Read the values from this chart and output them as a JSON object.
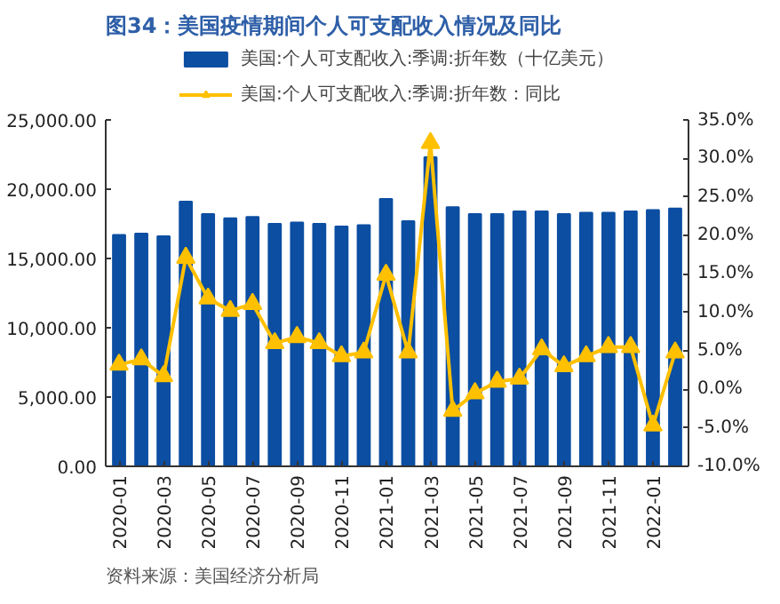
{
  "chart_data": {
    "type": "bar",
    "title": "图34：美国疫情期间个人可支配收入情况及同比",
    "categories": [
      "2020-01",
      null,
      "2020-03",
      null,
      "2020-05",
      null,
      "2020-07",
      null,
      "2020-09",
      null,
      "2020-11",
      null,
      "2021-01",
      null,
      "2021-03",
      null,
      "2021-05",
      null,
      "2021-07",
      null,
      "2021-09",
      null,
      "2021-11",
      null,
      "2022-01",
      null
    ],
    "series": [
      {
        "name": "美国:个人可支配收入:季调:折年数（十亿美元）",
        "color": "#0b4ea2",
        "values": [
          16700,
          16800,
          16600,
          19100,
          18200,
          17900,
          18000,
          17500,
          17600,
          17500,
          17300,
          17400,
          19300,
          17700,
          22300,
          18700,
          18200,
          18200,
          18400,
          18400,
          18200,
          18300,
          18300,
          18400,
          18500,
          18600
        ]
      },
      {
        "name": "美国:个人可支配收入:季调:折年数：同比",
        "type": "line",
        "axis": "y2",
        "color": "#ffc000",
        "marker": "triangle",
        "values": [
          3.2,
          3.9,
          1.7,
          17.1,
          11.8,
          10.2,
          11.1,
          6.0,
          6.8,
          6.0,
          4.3,
          4.8,
          14.9,
          4.8,
          32.0,
          -2.8,
          -0.5,
          1.0,
          1.4,
          5.2,
          3.0,
          4.3,
          5.5,
          5.5,
          -4.7,
          4.8
        ]
      }
    ],
    "ylim": [
      0,
      25000
    ],
    "yticks": [
      {
        "value": 0,
        "label": "0.00"
      },
      {
        "value": 5000,
        "label": "5,000.00"
      },
      {
        "value": 10000,
        "label": "10,000.00"
      },
      {
        "value": 15000,
        "label": "15,000.00"
      },
      {
        "value": 20000,
        "label": "20,000.00"
      },
      {
        "value": 25000,
        "label": "25,000.00"
      }
    ],
    "y2lim": [
      -10,
      35
    ],
    "y2ticks": [
      {
        "value": -10,
        "label": "-10.0%"
      },
      {
        "value": -5,
        "label": "-5.0%"
      },
      {
        "value": 0,
        "label": "0.0%"
      },
      {
        "value": 5,
        "label": "5.0%"
      },
      {
        "value": 10,
        "label": "10.0%"
      },
      {
        "value": 15,
        "label": "15.0%"
      },
      {
        "value": 20,
        "label": "20.0%"
      },
      {
        "value": 25,
        "label": "25.0%"
      },
      {
        "value": 30,
        "label": "30.0%"
      },
      {
        "value": 35,
        "label": "35.0%"
      }
    ],
    "legend": "top",
    "grid": false,
    "annotations": [
      "资料来源：美国经济分析局"
    ]
  }
}
